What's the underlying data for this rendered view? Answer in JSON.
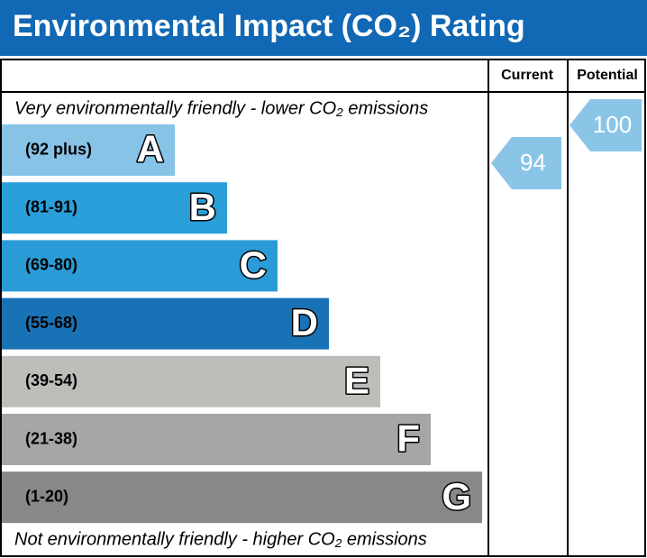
{
  "chart_data": {
    "type": "rating",
    "title": "Environmental Impact (CO₂) Rating",
    "top_note": "Very environmentally friendly - lower CO₂ emissions",
    "bottom_note": "Not environmentally friendly - higher CO₂ emissions",
    "columns": [
      "Current",
      "Potential"
    ],
    "bands": [
      {
        "letter": "A",
        "range": "(92 plus)",
        "color": "#86c3e7"
      },
      {
        "letter": "B",
        "range": "(81-91)",
        "color": "#2a9fd9"
      },
      {
        "letter": "C",
        "range": "(69-80)",
        "color": "#2a9bd6"
      },
      {
        "letter": "D",
        "range": "(55-68)",
        "color": "#1a72b6"
      },
      {
        "letter": "E",
        "range": "(39-54)",
        "color": "#bebdba"
      },
      {
        "letter": "F",
        "range": "(21-38)",
        "color": "#a6a6a7"
      },
      {
        "letter": "G",
        "range": "(1-20)",
        "color": "#888889"
      }
    ],
    "current": 94,
    "potential": 100,
    "arrow_color": "#8ac5e8",
    "header_color": "#1168b4"
  }
}
